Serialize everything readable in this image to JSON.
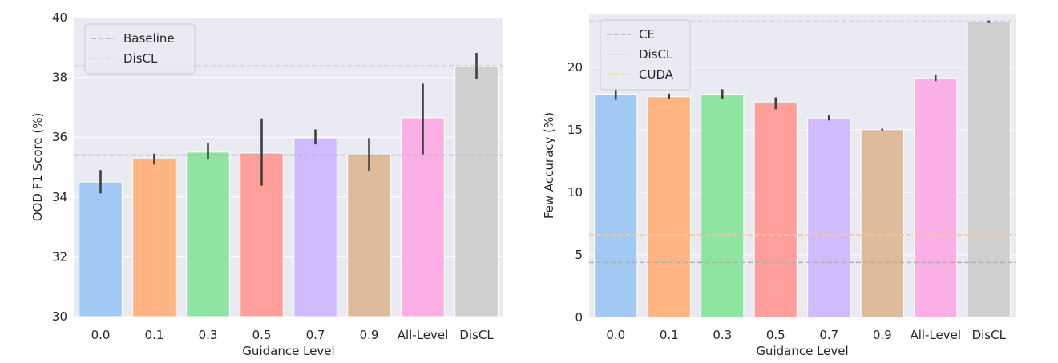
{
  "chart_data": [
    {
      "type": "bar",
      "xlabel": "Guidance Level",
      "ylabel": "OOD F1 Score (%)",
      "ylim": [
        30,
        40
      ],
      "yticks": [
        30,
        32,
        34,
        36,
        38,
        40
      ],
      "grid": true,
      "legend_position": "top-left",
      "categories": [
        "0.0",
        "0.1",
        "0.3",
        "0.5",
        "0.7",
        "0.9",
        "All-Level",
        "DisCL"
      ],
      "values": [
        34.5,
        35.27,
        35.5,
        35.47,
        35.98,
        35.41,
        36.65,
        38.38
      ],
      "error_low": [
        34.12,
        35.08,
        35.25,
        34.38,
        35.76,
        34.86,
        35.43,
        37.96
      ],
      "error_high": [
        34.9,
        35.45,
        35.8,
        36.63,
        36.26,
        35.97,
        37.79,
        38.82
      ],
      "bar_colors": [
        "#a1c9f4",
        "#ffb482",
        "#8de5a1",
        "#ff9f9b",
        "#d0bbff",
        "#debb9b",
        "#fab0e4",
        "#cfcfcf"
      ],
      "reference_lines": [
        {
          "name": "Baseline",
          "value": 35.4,
          "color": "#b0b0b0"
        },
        {
          "name": "DisCL",
          "value": 38.4,
          "color": "#d5d5d5"
        }
      ]
    },
    {
      "type": "bar",
      "xlabel": "Guidance Level",
      "ylabel": "Few Accuracy (%)",
      "ylim": [
        0,
        24.3
      ],
      "yticks": [
        0,
        5,
        10,
        15,
        20
      ],
      "grid": true,
      "legend_position": "top-left",
      "categories": [
        "0.0",
        "0.1",
        "0.3",
        "0.5",
        "0.7",
        "0.9",
        "All-Level",
        "DisCL"
      ],
      "values": [
        17.85,
        17.65,
        17.85,
        17.15,
        15.95,
        15.02,
        19.15,
        23.65
      ],
      "error_low": [
        17.4,
        17.45,
        17.5,
        16.65,
        15.75,
        14.95,
        18.9,
        23.55
      ],
      "error_high": [
        18.35,
        17.9,
        18.25,
        17.6,
        16.15,
        15.1,
        19.4,
        23.75
      ],
      "bar_colors": [
        "#a1c9f4",
        "#ffb482",
        "#8de5a1",
        "#ff9f9b",
        "#d0bbff",
        "#debb9b",
        "#fab0e4",
        "#cfcfcf"
      ],
      "reference_lines": [
        {
          "name": "CE",
          "value": 4.4,
          "color": "#b0b0b0"
        },
        {
          "name": "DisCL",
          "value": 23.7,
          "color": "#d5d5d5"
        },
        {
          "name": "CUDA",
          "value": 6.6,
          "color": "#f5c89a"
        }
      ]
    }
  ]
}
